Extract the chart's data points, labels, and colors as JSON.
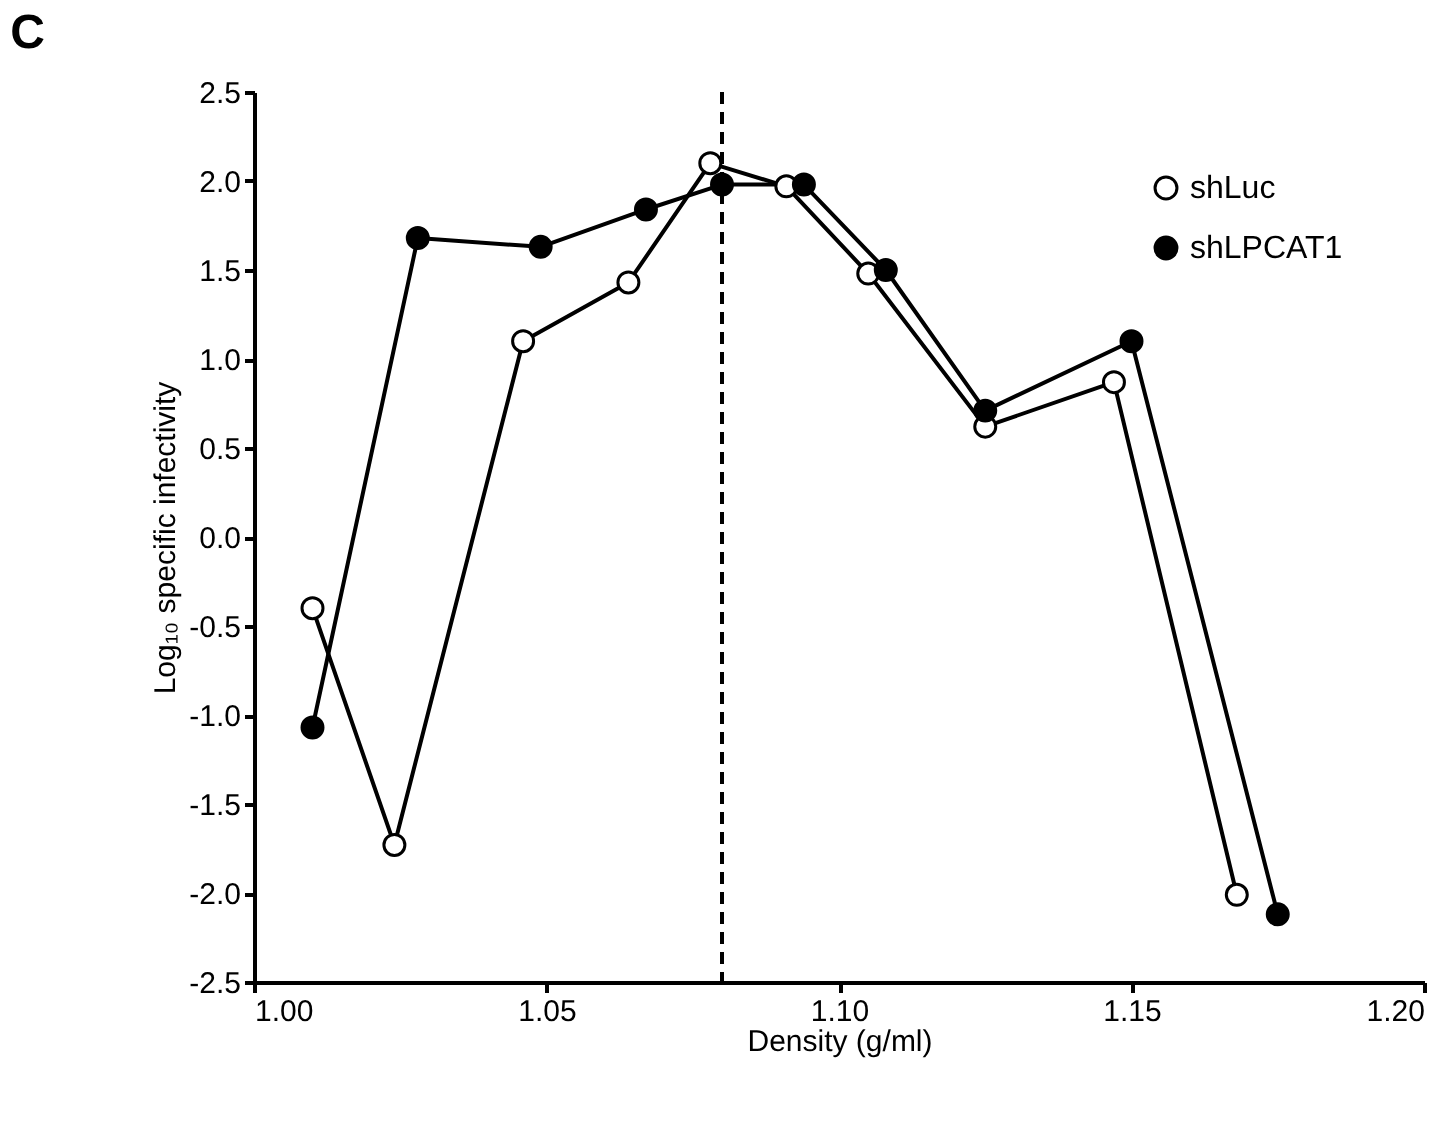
{
  "chart_data": {
    "type": "line",
    "title": "C",
    "xlabel": "Density (g/ml)",
    "ylabel": "Log₁₀ specific infectivity",
    "xlim": [
      1.0,
      1.2
    ],
    "xticks": [
      {
        "value": 1.0,
        "label": "1.00"
      },
      {
        "value": 1.05,
        "label": "1.05"
      },
      {
        "value": 1.1,
        "label": "1.10"
      },
      {
        "value": 1.15,
        "label": "1.15"
      },
      {
        "value": 1.2,
        "label": "1.20"
      }
    ],
    "ylim": [
      -2.5,
      2.5
    ],
    "yticks": [
      {
        "value": -2.5,
        "label": "-2.5"
      },
      {
        "value": -2.0,
        "label": "-2.0"
      },
      {
        "value": -1.5,
        "label": "-1.5"
      },
      {
        "value": -1.0,
        "label": "-1.0"
      },
      {
        "value": -0.5,
        "label": "-0.5"
      },
      {
        "value": 0,
        "label": "0.0"
      },
      {
        "value": 0.5,
        "label": "0.5"
      },
      {
        "value": 1.0,
        "label": "1.0"
      },
      {
        "value": 1.5,
        "label": "1.5"
      },
      {
        "value": 2.0,
        "label": "2.0"
      },
      {
        "value": 2.5,
        "label": "2.5"
      }
    ],
    "grid": false,
    "legend": "top right",
    "marker": "circle",
    "line_style": "solid",
    "series": [
      {
        "name": "shLuc",
        "color": "#000000",
        "colors": [
          "#ffffff",
          "#ffffff",
          "#ffffff",
          "#ffffff",
          "#ffffff",
          "#ffffff",
          "#ffffff",
          "#ffffff",
          "#ffffff",
          "#ffffff"
        ],
        "x": [
          1.01,
          1.024,
          1.046,
          1.064,
          1.078,
          1.091,
          1.105,
          1.125,
          1.147,
          1.168
        ],
        "values": [
          -0.4,
          -1.73,
          1.1,
          1.43,
          2.1,
          1.97,
          1.48,
          0.62,
          0.87,
          -2.01
        ]
      },
      {
        "name": "shLPCAT1",
        "color": "#000000",
        "colors": [
          "#000000",
          "#000000",
          "#000000",
          "#000000",
          "#000000",
          "#000000",
          "#000000",
          "#000000",
          "#000000",
          "#000000"
        ],
        "x": [
          1.01,
          1.028,
          1.049,
          1.067,
          1.08,
          1.094,
          1.108,
          1.125,
          1.15,
          1.175
        ],
        "values": [
          -1.07,
          1.68,
          1.63,
          1.84,
          1.98,
          1.98,
          1.5,
          0.71,
          1.1,
          -2.12
        ]
      }
    ],
    "ref_lines": [
      {
        "axis": "x",
        "value": 1.08,
        "color": "#000000",
        "line_style": "dashed"
      }
    ]
  }
}
